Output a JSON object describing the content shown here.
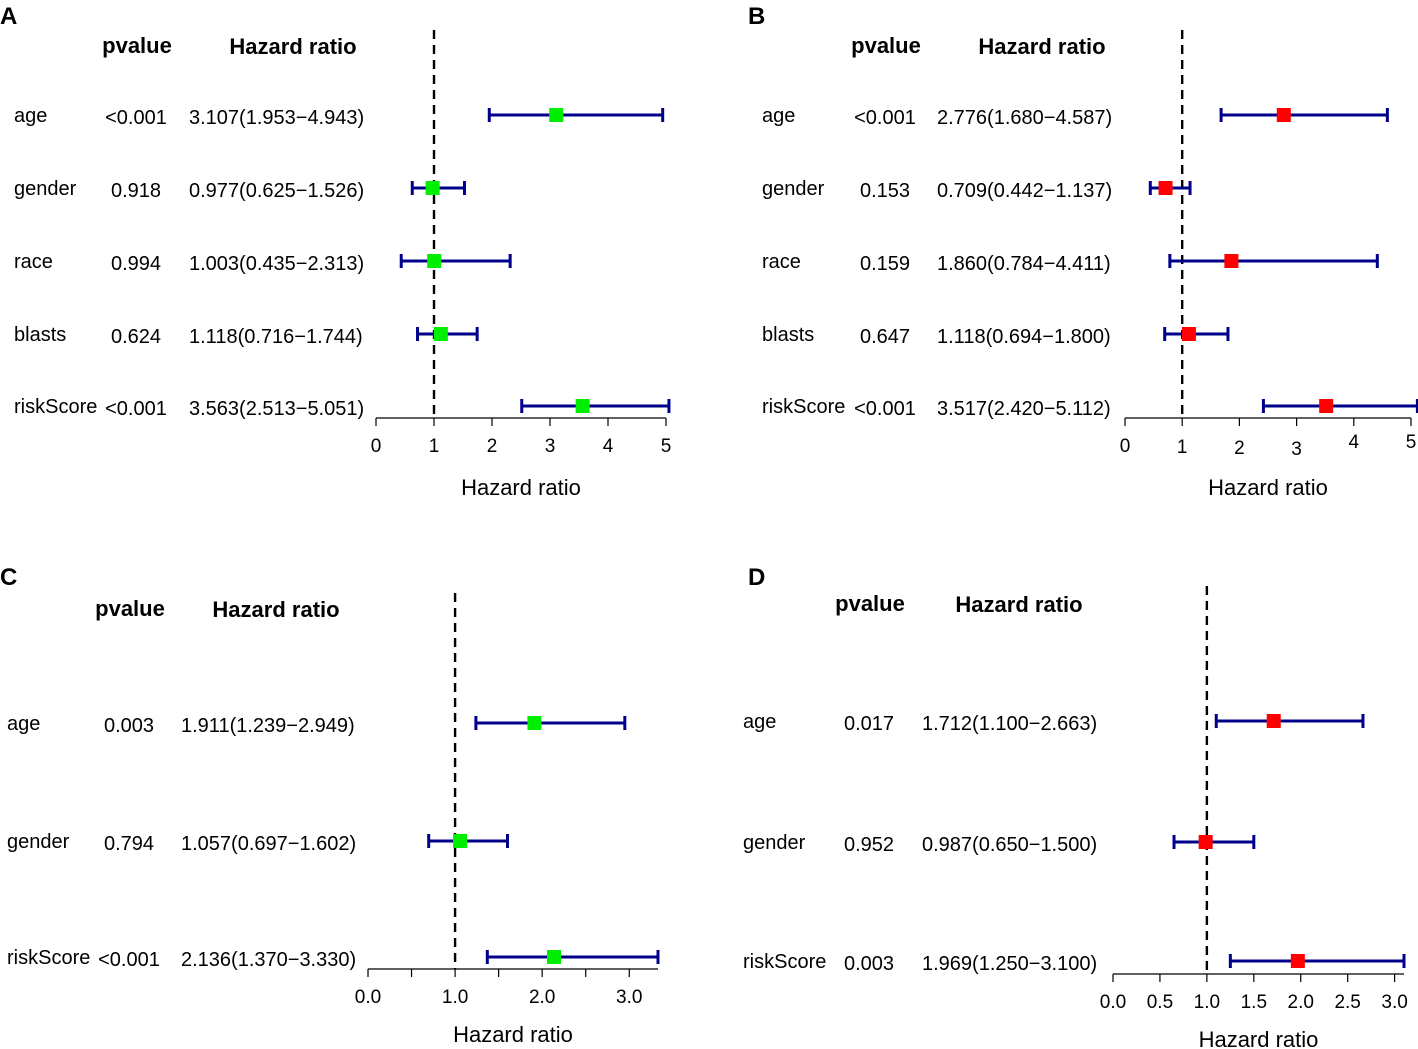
{
  "colors": {
    "ci": "#00008B",
    "green": "#00EE00",
    "red": "#FF0000"
  },
  "chart_data": [
    {
      "type": "forest",
      "panel": "A",
      "headers": {
        "pvalue": "pvalue",
        "hr": "Hazard ratio"
      },
      "xlabel": "Hazard ratio",
      "xlim": [
        0,
        5
      ],
      "ticks": [
        "0",
        "1",
        "2",
        "3",
        "4",
        "5"
      ],
      "tick_values": [
        0,
        1,
        2,
        3,
        4,
        5
      ],
      "ref": 1,
      "marker_color": "#00EE00",
      "rows": [
        {
          "label": "age",
          "p": "<0.001",
          "hr_text": "3.107(1.953−4.943)",
          "hr": 3.107,
          "lo": 1.953,
          "hi": 4.943
        },
        {
          "label": "gender",
          "p": "0.918",
          "hr_text": "0.977(0.625−1.526)",
          "hr": 0.977,
          "lo": 0.625,
          "hi": 1.526
        },
        {
          "label": "race",
          "p": "0.994",
          "hr_text": "1.003(0.435−2.313)",
          "hr": 1.003,
          "lo": 0.435,
          "hi": 2.313
        },
        {
          "label": "blasts",
          "p": "0.624",
          "hr_text": "1.118(0.716−1.744)",
          "hr": 1.118,
          "lo": 0.716,
          "hi": 1.744
        },
        {
          "label": "riskScore",
          "p": "<0.001",
          "hr_text": "3.563(2.513−5.051)",
          "hr": 3.563,
          "lo": 2.513,
          "hi": 5.051
        }
      ]
    },
    {
      "type": "forest",
      "panel": "B",
      "headers": {
        "pvalue": "pvalue",
        "hr": "Hazard ratio"
      },
      "xlabel": "Hazard ratio",
      "xlim": [
        0,
        5
      ],
      "ticks": [
        "0",
        "1",
        "2",
        "3",
        "4",
        "5"
      ],
      "tick_values": [
        0,
        1,
        2,
        3,
        4,
        5
      ],
      "ref": 1,
      "marker_color": "#FF0000",
      "rows": [
        {
          "label": "age",
          "p": "<0.001",
          "hr_text": "2.776(1.680−4.587)",
          "hr": 2.776,
          "lo": 1.68,
          "hi": 4.587
        },
        {
          "label": "gender",
          "p": "0.153",
          "hr_text": "0.709(0.442−1.137)",
          "hr": 0.709,
          "lo": 0.442,
          "hi": 1.137
        },
        {
          "label": "race",
          "p": "0.159",
          "hr_text": "1.860(0.784−4.411)",
          "hr": 1.86,
          "lo": 0.784,
          "hi": 4.411
        },
        {
          "label": "blasts",
          "p": "0.647",
          "hr_text": "1.118(0.694−1.800)",
          "hr": 1.118,
          "lo": 0.694,
          "hi": 1.8
        },
        {
          "label": "riskScore",
          "p": "<0.001",
          "hr_text": "3.517(2.420−5.112)",
          "hr": 3.517,
          "lo": 2.42,
          "hi": 5.112
        }
      ]
    },
    {
      "type": "forest",
      "panel": "C",
      "headers": {
        "pvalue": "pvalue",
        "hr": "Hazard ratio"
      },
      "xlabel": "Hazard ratio",
      "xlim": [
        0,
        3.33
      ],
      "ticks": [
        "0.0",
        "1.0",
        "2.0",
        "3.0"
      ],
      "tick_values": [
        0,
        1,
        2,
        3
      ],
      "minor_ticks": [
        0.5,
        1.5,
        2.5
      ],
      "ref": 1,
      "marker_color": "#00EE00",
      "rows": [
        {
          "label": "age",
          "p": "0.003",
          "hr_text": "1.911(1.239−2.949)",
          "hr": 1.911,
          "lo": 1.239,
          "hi": 2.949
        },
        {
          "label": "gender",
          "p": "0.794",
          "hr_text": "1.057(0.697−1.602)",
          "hr": 1.057,
          "lo": 0.697,
          "hi": 1.602
        },
        {
          "label": "riskScore",
          "p": "<0.001",
          "hr_text": "2.136(1.370−3.330)",
          "hr": 2.136,
          "lo": 1.37,
          "hi": 3.33
        }
      ]
    },
    {
      "type": "forest",
      "panel": "D",
      "headers": {
        "pvalue": "pvalue",
        "hr": "Hazard ratio"
      },
      "xlabel": "Hazard ratio",
      "xlim": [
        0,
        3.1
      ],
      "ticks": [
        "0.0",
        "0.5",
        "1.0",
        "1.5",
        "2.0",
        "2.5",
        "3.0"
      ],
      "tick_values": [
        0,
        0.5,
        1,
        1.5,
        2,
        2.5,
        3
      ],
      "ref": 1,
      "marker_color": "#FF0000",
      "rows": [
        {
          "label": "age",
          "p": "0.017",
          "hr_text": "1.712(1.100−2.663)",
          "hr": 1.712,
          "lo": 1.1,
          "hi": 2.663
        },
        {
          "label": "gender",
          "p": "0.952",
          "hr_text": "0.987(0.650−1.500)",
          "hr": 0.987,
          "lo": 0.65,
          "hi": 1.5
        },
        {
          "label": "riskScore",
          "p": "0.003",
          "hr_text": "1.969(1.250−3.100)",
          "hr": 1.969,
          "lo": 1.25,
          "hi": 3.1
        }
      ]
    }
  ]
}
